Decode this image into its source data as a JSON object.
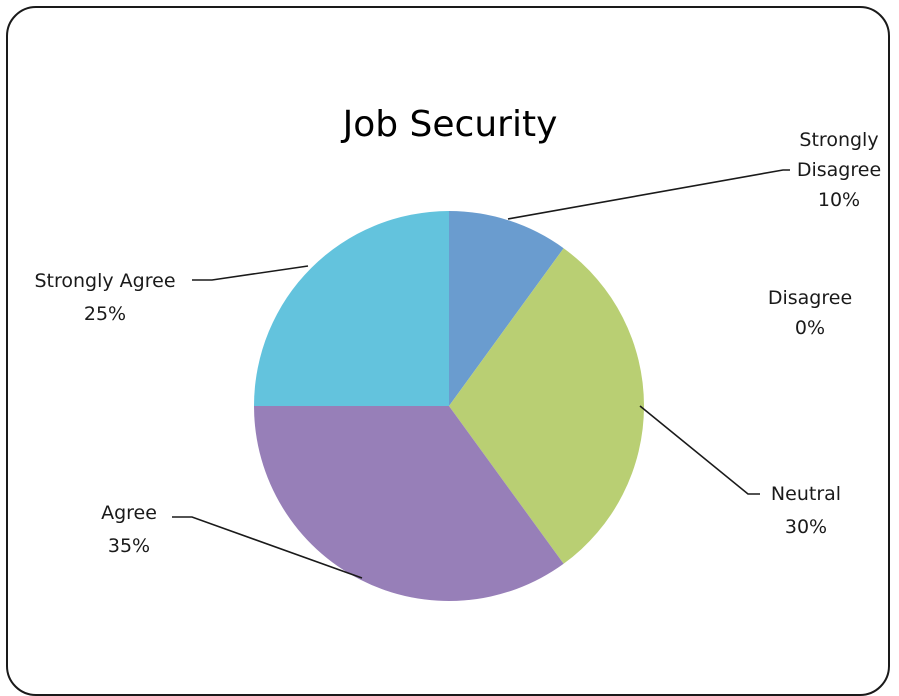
{
  "chart_data": {
    "type": "pie",
    "title": "Job Security",
    "categories": [
      "Strongly Disagree",
      "Disagree",
      "Neutral",
      "Agree",
      "Strongly Agree"
    ],
    "values": [
      10,
      0,
      30,
      35,
      25
    ],
    "units": "%",
    "labels": [
      {
        "lines": [
          "Strongly",
          "Disagree",
          "10%"
        ]
      },
      {
        "lines": [
          "Disagree",
          "0%"
        ]
      },
      {
        "lines": [
          "Neutral",
          "30%"
        ]
      },
      {
        "lines": [
          "Agree",
          "35%"
        ]
      },
      {
        "lines": [
          "Strongly Agree",
          "25%"
        ]
      }
    ],
    "colors": [
      "#6a9ccf",
      "#c0504d",
      "#b9cf73",
      "#977fb8",
      "#63c3dd"
    ],
    "legend": "none",
    "start_angle": "12 o'clock",
    "direction": "clockwise"
  }
}
